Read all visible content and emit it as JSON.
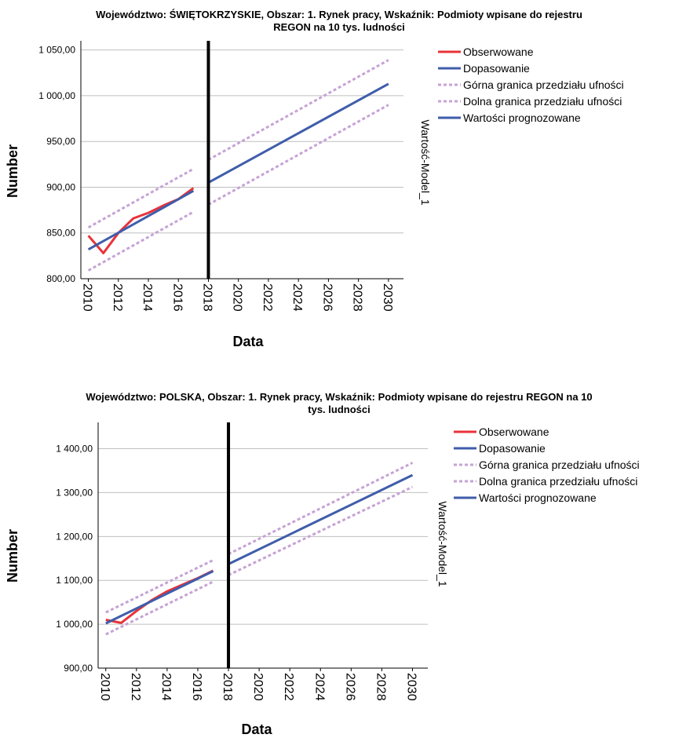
{
  "colors": {
    "observed": "#e8333a",
    "fitted": "#3f5daa",
    "ci": "#c6a3d5",
    "forecast": "#3f5daa",
    "divider": "#000000",
    "grid": "#bfbfbf"
  },
  "chart_data": [
    {
      "type": "line",
      "title_line1": "Województwo: ŚWIĘTOKRZYSKIE, Obszar: 1. Rynek pracy, Wskaźnik: Podmioty wpisane do rejestru",
      "title_line2": "REGON na 10 tys. ludności",
      "xlabel": "Data",
      "ylabel": "Number",
      "side_label": "Wartość-Model_1",
      "ylim": [
        800,
        1060
      ],
      "xlim": [
        2009.5,
        2031
      ],
      "yticks": [
        800,
        850,
        900,
        950,
        1000,
        1050
      ],
      "ytick_labels": [
        "800,00",
        "850,00",
        "900,00",
        "950,00",
        "1 000,00",
        "1 050,00"
      ],
      "xticks": [
        "2010",
        "2012",
        "2014",
        "2016",
        "2018",
        "2020",
        "2022",
        "2024",
        "2026",
        "2028",
        "2030"
      ],
      "divider_x": 2018,
      "grid": "horizontal",
      "legend_position": "right",
      "legend": [
        "Obserwowane",
        "Dopasowanie",
        "Górna granica przedziału ufności",
        "Dolna granica przedziału ufności",
        "Wartości prognozowane"
      ],
      "series": [
        {
          "name": "Obserwowane",
          "x": [
            2010,
            2011,
            2012,
            2013,
            2014,
            2015,
            2016,
            2017
          ],
          "y": [
            847,
            828,
            850,
            866,
            872,
            880,
            887,
            899
          ]
        },
        {
          "name": "Dopasowanie",
          "x": [
            2010,
            2017
          ],
          "y": [
            832,
            896
          ]
        },
        {
          "name": "Górna granica przedziału ufności",
          "x": [
            2010,
            2017
          ],
          "y": [
            856,
            920
          ]
        },
        {
          "name": "Dolna granica przedziału ufności",
          "x": [
            2010,
            2017
          ],
          "y": [
            809,
            873
          ]
        },
        {
          "name": "Górna granica przedziału ufności",
          "x": [
            2018,
            2030
          ],
          "y": [
            930,
            1039
          ]
        },
        {
          "name": "Dolna granica przedziału ufności",
          "x": [
            2018,
            2030
          ],
          "y": [
            881,
            990
          ]
        },
        {
          "name": "Wartości prognozowane",
          "x": [
            2018,
            2030
          ],
          "y": [
            905,
            1013
          ]
        }
      ]
    },
    {
      "type": "line",
      "title_line1": "Województwo: POLSKA, Obszar: 1. Rynek pracy, Wskaźnik: Podmioty wpisane do rejestru REGON na 10",
      "title_line2": "tys. ludności",
      "xlabel": "Data",
      "ylabel": "Number",
      "side_label": "Wartość-Model_1",
      "ylim": [
        900,
        1460
      ],
      "xlim": [
        2009.5,
        2031
      ],
      "yticks": [
        900,
        1000,
        1100,
        1200,
        1300,
        1400
      ],
      "ytick_labels": [
        "900,00",
        "1 000,00",
        "1 100,00",
        "1 200,00",
        "1 300,00",
        "1 400,00"
      ],
      "xticks": [
        "2010",
        "2012",
        "2014",
        "2016",
        "2018",
        "2020",
        "2022",
        "2024",
        "2026",
        "2028",
        "2030"
      ],
      "divider_x": 2018,
      "grid": "horizontal",
      "legend_position": "right",
      "legend": [
        "Obserwowane",
        "Dopasowanie",
        "Górna granica przedziału ufności",
        "Dolna granica przedziału ufności",
        "Wartości prognozowane"
      ],
      "series": [
        {
          "name": "Obserwowane",
          "x": [
            2010,
            2011,
            2012,
            2013,
            2014,
            2015,
            2016,
            2017
          ],
          "y": [
            1010,
            1003,
            1030,
            1055,
            1075,
            1090,
            1105,
            1122
          ]
        },
        {
          "name": "Dopasowanie",
          "x": [
            2010,
            2017
          ],
          "y": [
            1002,
            1121
          ]
        },
        {
          "name": "Górna granica przedziału ufności",
          "x": [
            2010,
            2017
          ],
          "y": [
            1027,
            1146
          ]
        },
        {
          "name": "Dolna granica przedziału ufności",
          "x": [
            2010,
            2017
          ],
          "y": [
            977,
            1097
          ]
        },
        {
          "name": "Górna granica przedziału ufności",
          "x": [
            2018,
            2030
          ],
          "y": [
            1160,
            1368
          ]
        },
        {
          "name": "Dolna granica przedziału ufności",
          "x": [
            2018,
            2030
          ],
          "y": [
            1112,
            1313
          ]
        },
        {
          "name": "Wartości prognozowane",
          "x": [
            2018,
            2030
          ],
          "y": [
            1137,
            1340
          ]
        }
      ]
    }
  ]
}
